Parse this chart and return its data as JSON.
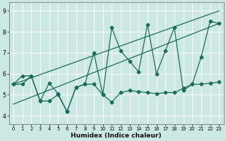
{
  "xlabel": "Humidex (Indice chaleur)",
  "bg_color": "#cce8e4",
  "line_color": "#1a6b5a",
  "grid_color": "#ffffff",
  "xlim": [
    -0.5,
    23.5
  ],
  "ylim": [
    3.6,
    9.4
  ],
  "yticks": [
    4,
    5,
    6,
    7,
    8,
    9
  ],
  "xticks": [
    0,
    1,
    2,
    3,
    4,
    5,
    6,
    7,
    8,
    9,
    10,
    11,
    12,
    13,
    14,
    15,
    16,
    17,
    18,
    19,
    20,
    21,
    22,
    23
  ],
  "zigzag_x": [
    0,
    1,
    2,
    3,
    4,
    5,
    6,
    7,
    8,
    9,
    10,
    11,
    12,
    13,
    14,
    15,
    16,
    17,
    18,
    19,
    20,
    21,
    22,
    23
  ],
  "zigzag_y": [
    5.5,
    5.9,
    5.9,
    4.7,
    5.55,
    5.05,
    4.2,
    5.35,
    5.5,
    7.0,
    5.0,
    8.2,
    7.1,
    6.6,
    6.1,
    8.35,
    6.0,
    7.1,
    8.2,
    5.2,
    5.5,
    6.8,
    8.5,
    8.4
  ],
  "smooth_x": [
    0,
    1,
    2,
    3,
    4,
    5,
    6,
    7,
    8,
    9,
    10,
    11,
    12,
    13,
    14,
    15,
    16,
    17,
    18,
    19,
    20,
    21,
    22,
    23
  ],
  "smooth_y": [
    5.5,
    5.5,
    5.9,
    4.7,
    4.7,
    5.0,
    4.2,
    5.35,
    5.5,
    5.5,
    5.0,
    4.65,
    5.1,
    5.2,
    5.15,
    5.1,
    5.05,
    5.1,
    5.1,
    5.3,
    5.5,
    5.5,
    5.55,
    5.6
  ],
  "trend1_x": [
    0,
    23
  ],
  "trend1_y": [
    5.5,
    9.0
  ],
  "trend2_x": [
    0,
    23
  ],
  "trend2_y": [
    4.55,
    8.4
  ],
  "markersize": 2.5,
  "linewidth": 0.9
}
